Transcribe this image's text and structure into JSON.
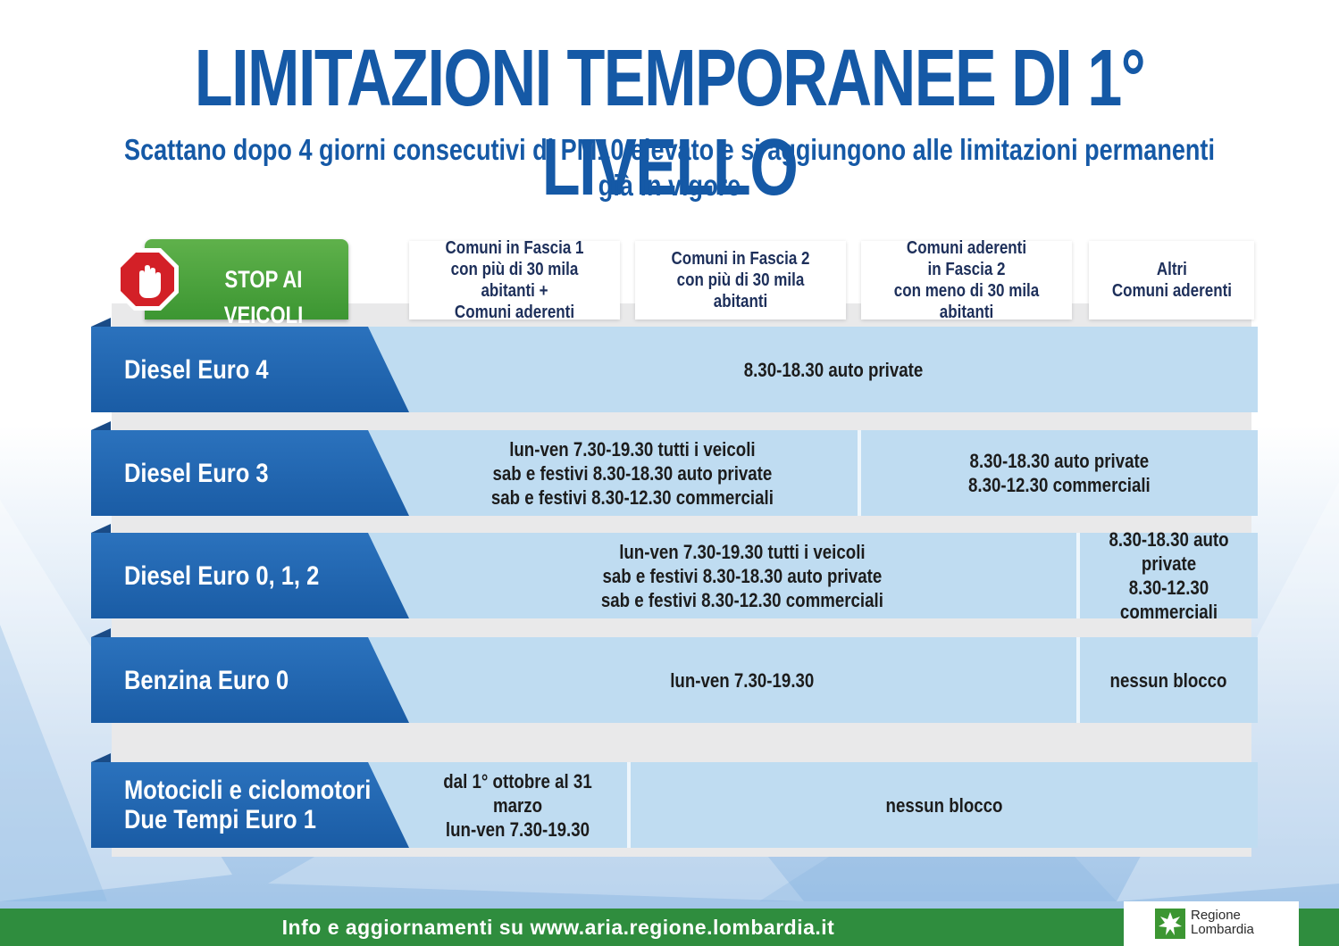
{
  "header": {
    "title": "LIMITAZIONI TEMPORANEE DI 1° LIVELLO",
    "subtitle": "Scattano dopo 4 giorni consecutivi di PM10 elevato e si aggiungono alle limitazioni permanenti già in vigore"
  },
  "stop": {
    "label": "STOP AI VEICOLI",
    "icon": "stop-hand-icon"
  },
  "columns": [
    "Comuni in Fascia 1\ncon più di 30 mila abitanti +\nComuni aderenti",
    "Comuni in Fascia 2\ncon più di 30 mila abitanti",
    "Comuni aderenti\nin Fascia 2\ncon meno di 30 mila abitanti",
    "Altri\nComuni aderenti"
  ],
  "rows": [
    {
      "label": "Diesel Euro 4",
      "cells": [
        "8.30-18.30 auto private"
      ]
    },
    {
      "label": "Diesel Euro 3",
      "cells": [
        "lun-ven 7.30-19.30 tutti i veicoli\nsab e festivi 8.30-18.30 auto private\nsab e festivi 8.30-12.30 commerciali",
        "8.30-18.30 auto private\n8.30-12.30 commerciali"
      ]
    },
    {
      "label": "Diesel Euro 0, 1, 2",
      "cells": [
        "lun-ven 7.30-19.30 tutti i veicoli\nsab e festivi 8.30-18.30 auto private\nsab e festivi 8.30-12.30 commerciali",
        "8.30-18.30 auto private\n8.30-12.30 commerciali"
      ]
    },
    {
      "label": "Benzina Euro 0",
      "cells": [
        "lun-ven 7.30-19.30",
        "nessun blocco"
      ]
    },
    {
      "label": "Motocicli e ciclomotori\nDue Tempi Euro 1",
      "cells": [
        "dal 1° ottobre al 31 marzo\nlun-ven 7.30-19.30",
        "nessun blocco"
      ]
    }
  ],
  "footer": {
    "text": "Info e aggiornamenti su www.aria.regione.lombardia.it",
    "logo_text": "Regione\nLombardia",
    "logo_icon": "regione-lombardia-logo-icon"
  },
  "colors": {
    "title_blue": "#1559a6",
    "label_blue": "#1a5ca5",
    "cell_blue": "#bfdcf1",
    "green": "#3c9632",
    "footer_green": "#2f8d3e",
    "stop_red": "#d32027"
  }
}
